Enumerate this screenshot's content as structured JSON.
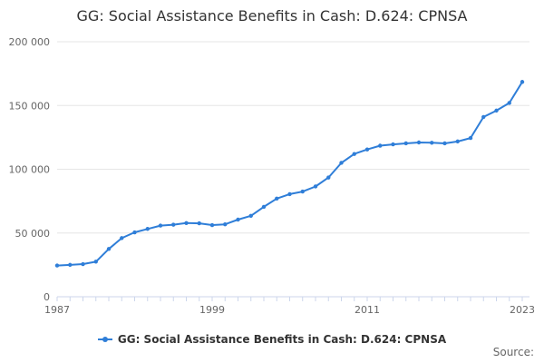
{
  "chart_data": {
    "type": "line",
    "title": "GG: Social Assistance Benefits in Cash: D.624: CPNSA",
    "x": [
      1987,
      1988,
      1989,
      1990,
      1991,
      1992,
      1993,
      1994,
      1995,
      1996,
      1997,
      1998,
      1999,
      2000,
      2001,
      2002,
      2003,
      2004,
      2005,
      2006,
      2007,
      2008,
      2009,
      2010,
      2011,
      2012,
      2013,
      2014,
      2015,
      2016,
      2017,
      2018,
      2019,
      2020,
      2021,
      2022,
      2023
    ],
    "series": [
      {
        "name": "GG: Social Assistance Benefits in Cash: D.624: CPNSA",
        "values": [
          24500,
          25000,
          25600,
          27500,
          37500,
          46000,
          50500,
          53200,
          55800,
          56500,
          57800,
          57600,
          56200,
          56800,
          60500,
          63500,
          70500,
          77000,
          80500,
          82500,
          86500,
          93500,
          105000,
          112000,
          115500,
          118500,
          119500,
          120300,
          121000,
          120800,
          120300,
          121800,
          124500,
          141000,
          146000,
          152000,
          168500
        ]
      }
    ],
    "xticks": [
      "1987",
      "1999",
      "2011",
      "2023"
    ],
    "yticks": [
      "0",
      "50 000",
      "100 000",
      "150 000",
      "200 000"
    ],
    "ylim": [
      0,
      200000
    ],
    "xlabel": "",
    "ylabel": "",
    "color": "#2f7ed8",
    "legend_position": "bottom",
    "source_label": "Source:"
  }
}
